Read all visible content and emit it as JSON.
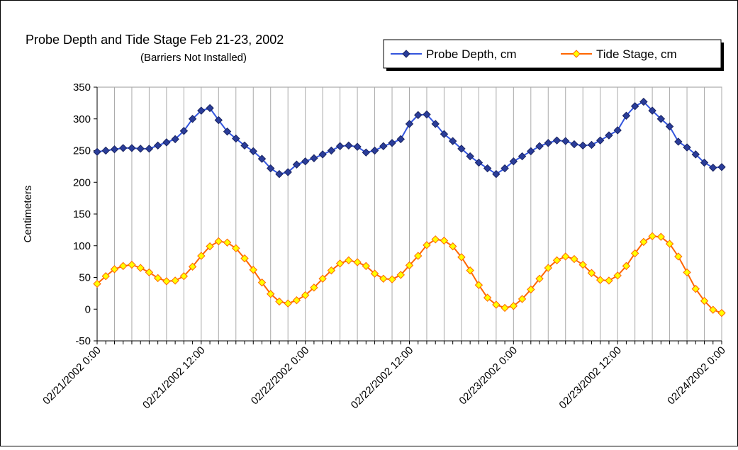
{
  "chart_data": {
    "type": "line",
    "title": "Probe Depth and Tide Stage Feb 21-23, 2002",
    "subtitle": "(Barriers Not Installed)",
    "y_label": "Centimeters",
    "categories": [
      "02/21/2002 0:00",
      null,
      null,
      null,
      null,
      null,
      null,
      null,
      null,
      null,
      null,
      null,
      "02/21/2002 12:00",
      null,
      null,
      null,
      null,
      null,
      null,
      null,
      null,
      null,
      null,
      null,
      "02/22/2002 0:00",
      null,
      null,
      null,
      null,
      null,
      null,
      null,
      null,
      null,
      null,
      null,
      "02/22/2002 12:00",
      null,
      null,
      null,
      null,
      null,
      null,
      null,
      null,
      null,
      null,
      null,
      "02/23/2002 0:00",
      null,
      null,
      null,
      null,
      null,
      null,
      null,
      null,
      null,
      null,
      null,
      "02/23/2002 12:00",
      null,
      null,
      null,
      null,
      null,
      null,
      null,
      null,
      null,
      null,
      null,
      "02/24/2002 0:00"
    ],
    "series": [
      {
        "name": "Probe Depth, cm",
        "color": "#3355dd",
        "marker_color": "#2a3d9a",
        "values": [
          248,
          250,
          252,
          254,
          254,
          253,
          253,
          258,
          263,
          268,
          281,
          300,
          313,
          317,
          298,
          280,
          269,
          258,
          249,
          237,
          222,
          213,
          216,
          228,
          233,
          238,
          244,
          250,
          257,
          258,
          256,
          247,
          250,
          257,
          262,
          268,
          292,
          306,
          307,
          292,
          276,
          265,
          253,
          241,
          231,
          222,
          213,
          222,
          233,
          241,
          249,
          257,
          262,
          266,
          265,
          260,
          258,
          259,
          266,
          274,
          282,
          305,
          320,
          327,
          313,
          300,
          288,
          264,
          255,
          244,
          231,
          223,
          224
        ]
      },
      {
        "name": "Tide Stage, cm",
        "color": "#ff6600",
        "marker_color": "#ffff00",
        "values": [
          40,
          52,
          63,
          68,
          70,
          65,
          58,
          49,
          44,
          45,
          52,
          67,
          84,
          99,
          107,
          105,
          96,
          80,
          62,
          42,
          24,
          12,
          9,
          14,
          22,
          34,
          48,
          61,
          72,
          77,
          74,
          68,
          56,
          48,
          47,
          54,
          69,
          84,
          101,
          110,
          108,
          99,
          82,
          61,
          38,
          18,
          7,
          2,
          5,
          16,
          31,
          48,
          65,
          77,
          83,
          79,
          70,
          57,
          46,
          45,
          53,
          68,
          88,
          106,
          115,
          114,
          103,
          83,
          58,
          32,
          13,
          -1,
          -6
        ]
      }
    ],
    "ylim": [
      -50,
      350
    ],
    "yticks": [
      -50,
      0,
      50,
      100,
      150,
      200,
      250,
      300,
      350
    ],
    "grid": "x",
    "legend": "top-right"
  }
}
